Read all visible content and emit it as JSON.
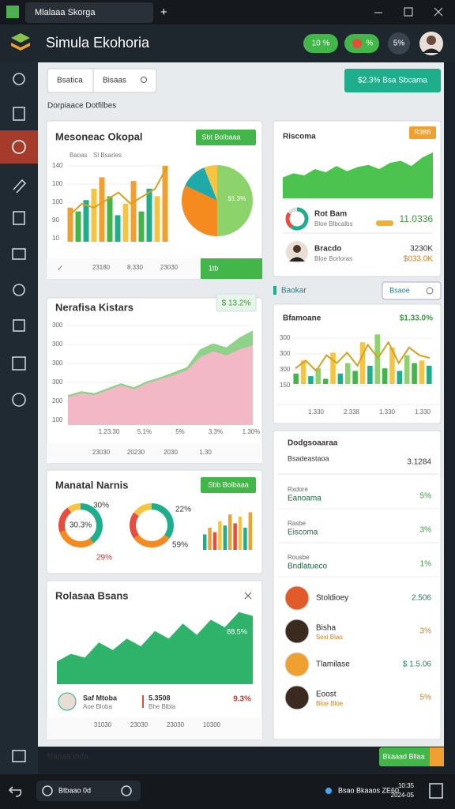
{
  "window": {
    "tab": "Mlalaaa Skorga"
  },
  "header": {
    "title": "Simula Ekohoria",
    "pills": [
      "10 %",
      "%",
      "5%"
    ]
  },
  "toolbar": {
    "search": [
      "Bsatica",
      "Bisaas"
    ],
    "button": "$2.3% Bsa Sbcama"
  },
  "section_label": "Dorpiaace Dotfilbes",
  "card1": {
    "title": "Mesoneac Okopal",
    "dropdown": "Sbt Bolbaaa",
    "legend": [
      "Baoas",
      "Sl Bsarles"
    ],
    "ylabels": [
      "140",
      "100",
      "100",
      "90",
      "10"
    ],
    "xlabels": [
      "23180",
      "8.330",
      "23030"
    ],
    "badge": "1tb",
    "bars": [
      45,
      40,
      55,
      70,
      85,
      60,
      35,
      50,
      80,
      40,
      70,
      60,
      100
    ],
    "bar_colors": [
      "#f0a030",
      "#43b649",
      "#1fae8c",
      "#f5c542"
    ],
    "trend": [
      35,
      50,
      45,
      55,
      65,
      50,
      60,
      70,
      100
    ],
    "trend_color": "#d9a020",
    "pie": [
      50,
      32,
      12,
      6
    ],
    "pie_colors": [
      "#8bd36a",
      "#f58a1f",
      "#1fa9a9",
      "#f5c542"
    ],
    "pie_label": "$1.3%"
  },
  "card2": {
    "title": "Nerafisa Kistars",
    "badge": "$ 13.2%",
    "ylabels": [
      "300",
      "300",
      "300",
      "300",
      "200",
      "100"
    ],
    "xlabels": [
      "1.23.30",
      "5.1%",
      "5%",
      "3.3%",
      "1.30%"
    ],
    "footer": [
      "23030",
      "20230",
      "2030",
      "1.30"
    ],
    "area": [
      28,
      32,
      30,
      35,
      40,
      36,
      42,
      46,
      50,
      55,
      68,
      74,
      70,
      76,
      80
    ],
    "area_color": "#f2b8c6",
    "line": [
      30,
      34,
      32,
      37,
      42,
      38,
      44,
      48,
      53,
      58,
      76,
      82,
      78,
      88,
      95
    ],
    "line_color": "#8fd28a"
  },
  "card3": {
    "title": "Manatal Narnis",
    "dropdown": "Sbb Bolbaaa",
    "donut1": [
      40,
      30,
      20,
      10
    ],
    "donut2": [
      35,
      30,
      20,
      15
    ],
    "donut_colors": [
      "#1fae8c",
      "#f58a1f",
      "#e74c3c",
      "#f5c542"
    ],
    "labels": [
      "30.3%",
      "30%",
      "22%",
      "59%",
      "29%"
    ],
    "bars": [
      35,
      50,
      40,
      65,
      55,
      80,
      60,
      75,
      50,
      85
    ],
    "bar_colors": [
      "#1fae8c",
      "#f0a030",
      "#e74c3c",
      "#f5c542"
    ]
  },
  "card4": {
    "title": "Rolasaa Bsans",
    "label": "88.5%",
    "area": [
      30,
      40,
      35,
      55,
      45,
      60,
      50,
      70,
      60,
      80,
      65,
      85,
      75,
      95,
      90
    ],
    "area_color": "#2fb36b",
    "row": {
      "name": "Saf Mtoba",
      "sub": "Aoe Bloba",
      "value": "5.3508",
      "sub2": "Bhe Blbla",
      "percent": "9.3%"
    },
    "footer": [
      "31030",
      "23030",
      "23030",
      "10300"
    ]
  },
  "cardA": {
    "title": "Riscoma",
    "badge": "R3BB",
    "area": [
      40,
      48,
      44,
      56,
      50,
      62,
      52,
      60,
      64,
      56,
      68,
      72,
      62,
      78,
      88
    ],
    "area_color": "#4cc34f",
    "donut": [
      60,
      25,
      15
    ],
    "donut_colors": [
      "#1fae8c",
      "#e74c3c",
      "#ddd"
    ],
    "rows": [
      {
        "name": "Rot Bam",
        "sub": "Bloe Blbcalbs",
        "value": "11.0336"
      },
      {
        "name": "Bracdo",
        "sub": "Bloe Borloras",
        "value": "3230K",
        "value2": "$033.0K"
      }
    ]
  },
  "right_section": {
    "label": "Baokar",
    "button": "Bsaoe"
  },
  "cardB": {
    "title": "Bfamoane",
    "value": "$1.33.0%",
    "ylabels": [
      "300",
      "300",
      "300",
      "150"
    ],
    "xlabels": [
      "1.330",
      "2.338",
      "1.330",
      "1.330"
    ],
    "bars": [
      20,
      45,
      15,
      30,
      10,
      60,
      20,
      40,
      25,
      80,
      35,
      95,
      30,
      70,
      25,
      55,
      40,
      45,
      35
    ],
    "bar_colors": [
      "#43b649",
      "#f5c542",
      "#1fae8c",
      "#8bd36a"
    ],
    "line": [
      30,
      45,
      25,
      55,
      40,
      60,
      35,
      75,
      50,
      80,
      40,
      70,
      55,
      50
    ],
    "line_color": "#d9a020"
  },
  "cardC": {
    "title": "Dodgsoaaraa",
    "header": "Bsadeastaoa",
    "total": "3.1284",
    "rows": [
      {
        "sub": "Rxdore",
        "label": "Eanoama",
        "value": "5%"
      },
      {
        "sub": "Rasbe",
        "label": "Eiscoma",
        "value": "3%"
      },
      {
        "sub": "Rousbe",
        "label": "Bndlatueco",
        "value": "1%"
      }
    ],
    "people": [
      {
        "name": "Stoldioey",
        "value": "2.506"
      },
      {
        "name": "Bisha",
        "sub": "Sexi Blao",
        "value": "3%"
      },
      {
        "name": "Tlamilase",
        "value": "$ 1.5.06"
      },
      {
        "name": "Eoost",
        "sub": "Bloe Bloe",
        "value": "5%"
      }
    ]
  },
  "footer": {
    "label": "Naoaa Inda",
    "button": "Bkaaad Bllaa"
  },
  "taskbar": {
    "item": "Btbaao 0d",
    "tray": "Bsao Bkaaos ZE60",
    "time": "10:35",
    "date": "2024-05"
  }
}
